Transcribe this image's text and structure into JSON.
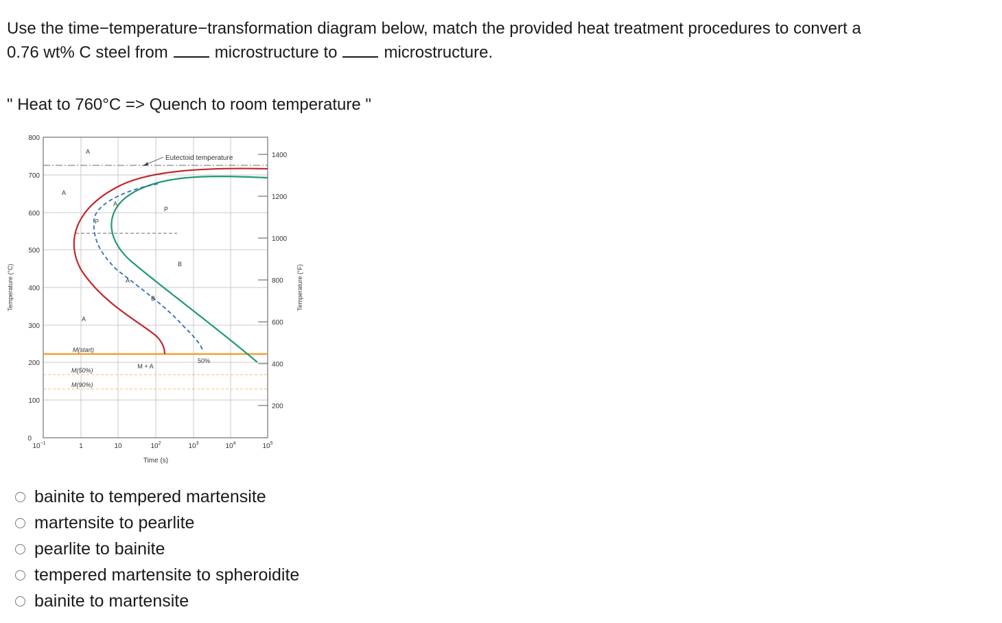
{
  "question": {
    "line1": "Use the time−temperature−transformation diagram below, match the provided heat treatment procedures to convert a",
    "line2_a": "0.76 wt% C steel from",
    "line2_b": "microstructure to",
    "line2_c": "microstructure."
  },
  "procedure": "\" Heat to 760°C => Quench to room temperature \"",
  "diagram": {
    "y_left_label": "Temperature (°C)",
    "y_right_label": "Temperature (°F)",
    "x_label": "Time (s)",
    "eutectoid_label": "Eutectoid temperature",
    "phase_labels": {
      "a_top": "A",
      "a_left": "A",
      "a_bottom": "A",
      "p": "P",
      "b": "B",
      "m_a": "M + A",
      "fifty": "50%",
      "mstart": "M(start)",
      "m50": "M(50%)",
      "m90": "M(90%)",
      "path_a1": "A",
      "path_p": "P",
      "path_a2": "A",
      "path_b": "B"
    },
    "y_ticks_c": [
      "800",
      "700",
      "600",
      "500",
      "400",
      "300",
      "200",
      "100",
      "0"
    ],
    "y_ticks_f": [
      "1400",
      "1200",
      "1000",
      "800",
      "600",
      "400",
      "200"
    ],
    "x_ticks": [
      {
        "base": "10",
        "exp": "−1"
      },
      {
        "base": "1",
        "exp": ""
      },
      {
        "base": "10",
        "exp": ""
      },
      {
        "base": "10",
        "exp": "2"
      },
      {
        "base": "10",
        "exp": "3"
      },
      {
        "base": "10",
        "exp": "4"
      },
      {
        "base": "10",
        "exp": "5"
      }
    ],
    "colors": {
      "start_curve": "#c0282d",
      "finish_curve": "#1f9a6e",
      "path": "#2b6fc1",
      "mstart_line": "#f0a030",
      "grid": "#c8c8c8"
    }
  },
  "options": [
    "bainite to tempered martensite",
    "martensite to pearlite",
    "pearlite to bainite",
    "tempered martensite to spheroidite",
    "bainite to martensite"
  ]
}
